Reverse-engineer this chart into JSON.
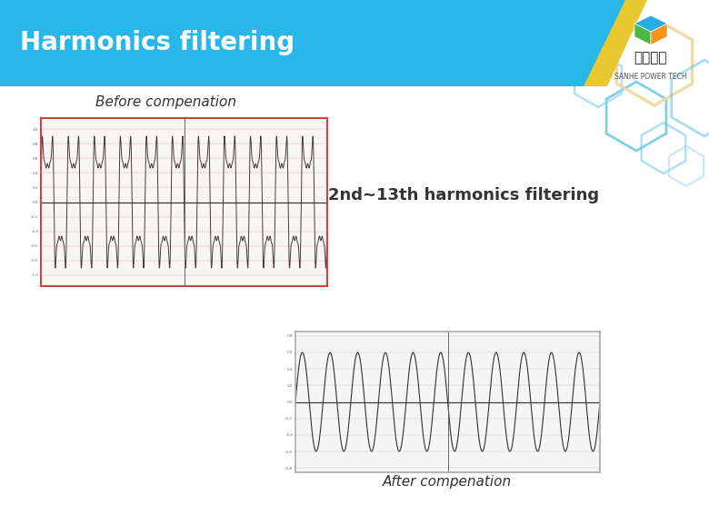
{
  "title": "Harmonics filtering",
  "header_bg_color": "#29B6E8",
  "header_text_color": "#FFFFFF",
  "header_yellow_color": "#E8C830",
  "bg_color": "#FFFFFF",
  "before_label": "Before compenation",
  "after_label": "After compenation",
  "middle_text": "2nd~13th harmonics filtering",
  "middle_text_color": "#333333",
  "logo_text1": "三和电力",
  "logo_text2": "SANHE POWER TECH",
  "before_plot": {
    "border_color": "#CC4444",
    "bg_color": "#F8F5F5",
    "grid_color": "#DDBBBB",
    "line_color": "#4A3A3A",
    "n_cycles": 11,
    "harmonic_distortion": 0.55,
    "amplitude": 0.72
  },
  "after_plot": {
    "border_color": "#AAAAAA",
    "bg_color": "#F5F5F5",
    "grid_color": "#CCCCCC",
    "line_color": "#333333",
    "n_cycles": 11,
    "harmonic_distortion": 0.04,
    "amplitude": 0.6
  },
  "hex_blue": "#6EC6E8",
  "hex_blue2": "#90D4EE",
  "hex_yellow": "#E8D898"
}
